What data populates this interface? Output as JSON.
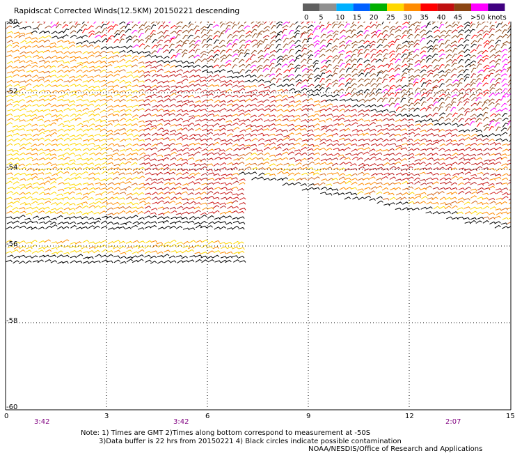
{
  "title": "Rapidscat Corrected Winds(12.5KM) 20150221 descending",
  "legend": {
    "labels": [
      "0",
      "5",
      "10",
      "15",
      "20",
      "25",
      "30",
      "35",
      "40",
      "45",
      ">50 knots"
    ],
    "colors": [
      "#606060",
      "#909090",
      "#00b0ff",
      "#0060ff",
      "#00b000",
      "#ffd800",
      "#ff8c00",
      "#ff0000",
      "#c01010",
      "#8b4513",
      "#ff00ff",
      "#400080"
    ]
  },
  "axes": {
    "x_ticks": [
      "0",
      "3",
      "6",
      "9",
      "12",
      "15"
    ],
    "y_ticks": [
      "-50",
      "-52",
      "-54",
      "-56",
      "-58",
      "-60"
    ]
  },
  "times": [
    "3:42",
    "3:42",
    "2:07"
  ],
  "notes": {
    "line1": "Note: 1) Times are GMT 2)Times along bottom correspond to measurement at -50S",
    "line2": "3)Data buffer is 22 hrs from 20150221 4) Black circles indicate possible contamination"
  },
  "credit": "NOAA/NESDIS/Office of Research and Applications"
}
